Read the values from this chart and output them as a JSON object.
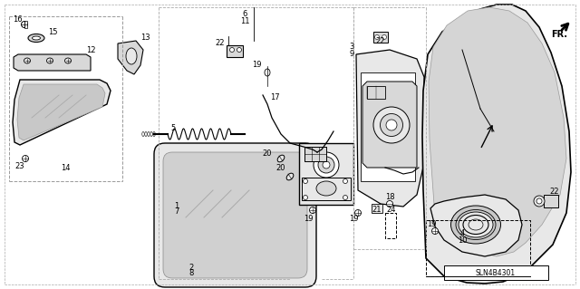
{
  "background_color": "#ffffff",
  "diagram_code": "SLN4B4301",
  "line_color": "#000000",
  "gray_fill": "#d8d8d8",
  "light_gray": "#e8e8e8",
  "mid_gray": "#bbbbbb",
  "dashed_color": "#888888"
}
